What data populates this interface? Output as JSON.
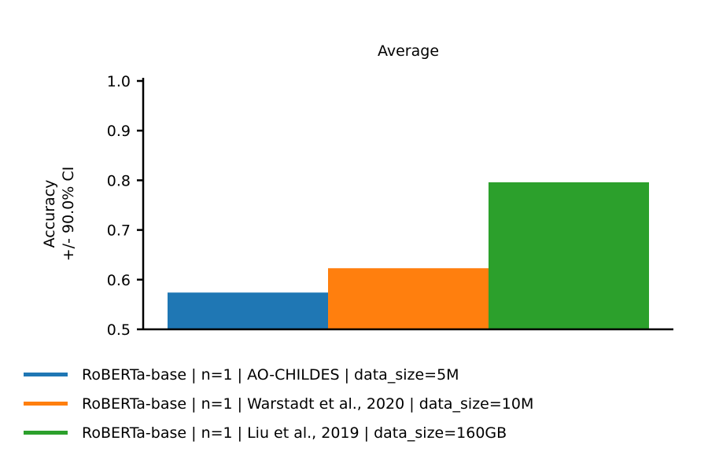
{
  "chart_data": {
    "type": "bar",
    "title": "Average",
    "ylabel_lines": [
      "Accuracy",
      "+/- 90.0% CI"
    ],
    "xlabel": "",
    "ylim": [
      0.5,
      1.0
    ],
    "yticks": [
      "0.5",
      "0.6",
      "0.7",
      "0.8",
      "0.9",
      "1.0"
    ],
    "grid": false,
    "legend_position": "bottom",
    "series": [
      {
        "name": "RoBERTa-base | n=1 | AO-CHILDES | data_size=5M",
        "value": 0.574,
        "color": "#1f77b4"
      },
      {
        "name": "RoBERTa-base | n=1 | Warstadt et al., 2020 | data_size=10M",
        "value": 0.623,
        "color": "#ff7f0e"
      },
      {
        "name": "RoBERTa-base | n=1 | Liu et al., 2019 | data_size=160GB",
        "value": 0.796,
        "color": "#2ca02c"
      }
    ]
  }
}
